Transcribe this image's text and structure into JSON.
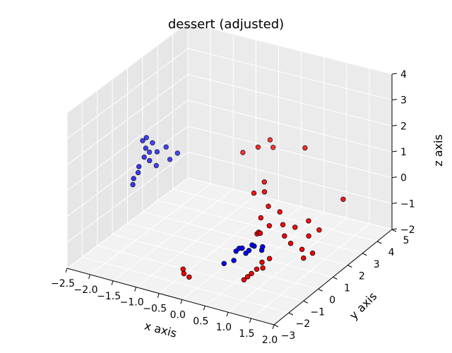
{
  "chart_data": {
    "type": "scatter3d",
    "title": "dessert (adjusted)",
    "xlabel": "x axis",
    "ylabel": "y axis",
    "zlabel": "z axis",
    "xlim": [
      -2.5,
      2.0
    ],
    "ylim": [
      -3,
      5
    ],
    "zlim": [
      -2,
      4
    ],
    "xticks": [
      "−2.5",
      "−2.0",
      "−1.5",
      "−1.0",
      "−0.5",
      "0.0",
      "0.5",
      "1.0",
      "1.5",
      "2.0"
    ],
    "yticks": [
      "−3",
      "−2",
      "−1",
      "0",
      "1",
      "2",
      "3",
      "4",
      "5"
    ],
    "zticks": [
      "−2",
      "−1",
      "0",
      "1",
      "2",
      "3",
      "4"
    ],
    "grid": true,
    "series": [
      {
        "color": "#0000ff",
        "points": [
          [
            -2.3,
            1.4,
            1.1
          ],
          [
            -2.25,
            1.5,
            1.2
          ],
          [
            -2.2,
            1.3,
            0.9
          ],
          [
            -2.15,
            1.6,
            1.0
          ],
          [
            -2.2,
            1.2,
            0.6
          ],
          [
            -2.25,
            1.0,
            0.3
          ],
          [
            -2.3,
            1.1,
            0.0
          ],
          [
            -2.35,
            0.9,
            -0.4
          ],
          [
            -2.3,
            0.8,
            -0.1
          ],
          [
            -2.15,
            1.4,
            0.4
          ],
          [
            -2.1,
            1.7,
            0.1
          ],
          [
            -1.95,
            1.9,
            0.8
          ],
          [
            -1.8,
            2.2,
            0.5
          ],
          [
            -1.9,
            2.0,
            0.3
          ],
          [
            -2.05,
            1.6,
            0.7
          ],
          [
            -2.25,
            1.7,
            0.55
          ],
          [
            0.3,
            -0.3,
            -1.2
          ],
          [
            0.4,
            -0.4,
            -1.0
          ],
          [
            0.45,
            -0.1,
            -1.3
          ],
          [
            0.5,
            -0.5,
            -0.9
          ],
          [
            0.55,
            -0.2,
            -1.1
          ],
          [
            0.6,
            0.0,
            -1.0
          ],
          [
            0.35,
            -0.6,
            -1.4
          ],
          [
            0.2,
            -0.8,
            -1.5
          ],
          [
            0.7,
            0.2,
            -1.2
          ],
          [
            0.65,
            -0.3,
            -0.8
          ],
          [
            0.75,
            0.1,
            -1.0
          ]
        ]
      },
      {
        "color": "#ff0000",
        "points": [
          [
            0.2,
            2.5,
            1.5
          ],
          [
            0.1,
            2.6,
            1.7
          ],
          [
            -0.3,
            2.0,
            1.3
          ],
          [
            0.0,
            2.1,
            1.6
          ],
          [
            0.9,
            2.5,
            1.8
          ],
          [
            0.5,
            0.5,
            -0.8
          ],
          [
            0.6,
            0.3,
            -0.6
          ],
          [
            0.7,
            0.1,
            -0.5
          ],
          [
            0.55,
            0.6,
            -0.2
          ],
          [
            0.65,
            0.8,
            0.2
          ],
          [
            0.5,
            1.0,
            0.6
          ],
          [
            0.4,
            1.3,
            0.8
          ],
          [
            0.8,
            0.4,
            -0.3
          ],
          [
            0.9,
            0.8,
            0.1
          ],
          [
            1.0,
            0.7,
            -0.3
          ],
          [
            1.1,
            0.5,
            -0.6
          ],
          [
            1.2,
            0.9,
            -0.4
          ],
          [
            1.4,
            1.2,
            -0.2
          ],
          [
            1.5,
            0.9,
            -0.6
          ],
          [
            1.6,
            1.3,
            -0.5
          ],
          [
            1.45,
            0.6,
            -1.0
          ],
          [
            1.55,
            0.4,
            -1.2
          ],
          [
            1.65,
            0.7,
            -1.1
          ],
          [
            1.3,
            0.3,
            -0.7
          ],
          [
            0.9,
            -0.4,
            -1.3
          ],
          [
            1.0,
            -0.2,
            -1.2
          ],
          [
            0.85,
            -0.6,
            -1.5
          ],
          [
            0.95,
            -0.5,
            -1.45
          ],
          [
            0.8,
            -0.8,
            -1.6
          ],
          [
            0.75,
            -0.9,
            -1.7
          ],
          [
            0.7,
            -1.0,
            -1.8
          ],
          [
            -0.4,
            -1.7,
            -1.6
          ],
          [
            -0.35,
            -1.8,
            -1.7
          ],
          [
            -0.3,
            -1.6,
            -1.9
          ],
          [
            1.9,
            2.0,
            0.5
          ],
          [
            0.3,
            0.9,
            0.5
          ]
        ]
      }
    ]
  }
}
